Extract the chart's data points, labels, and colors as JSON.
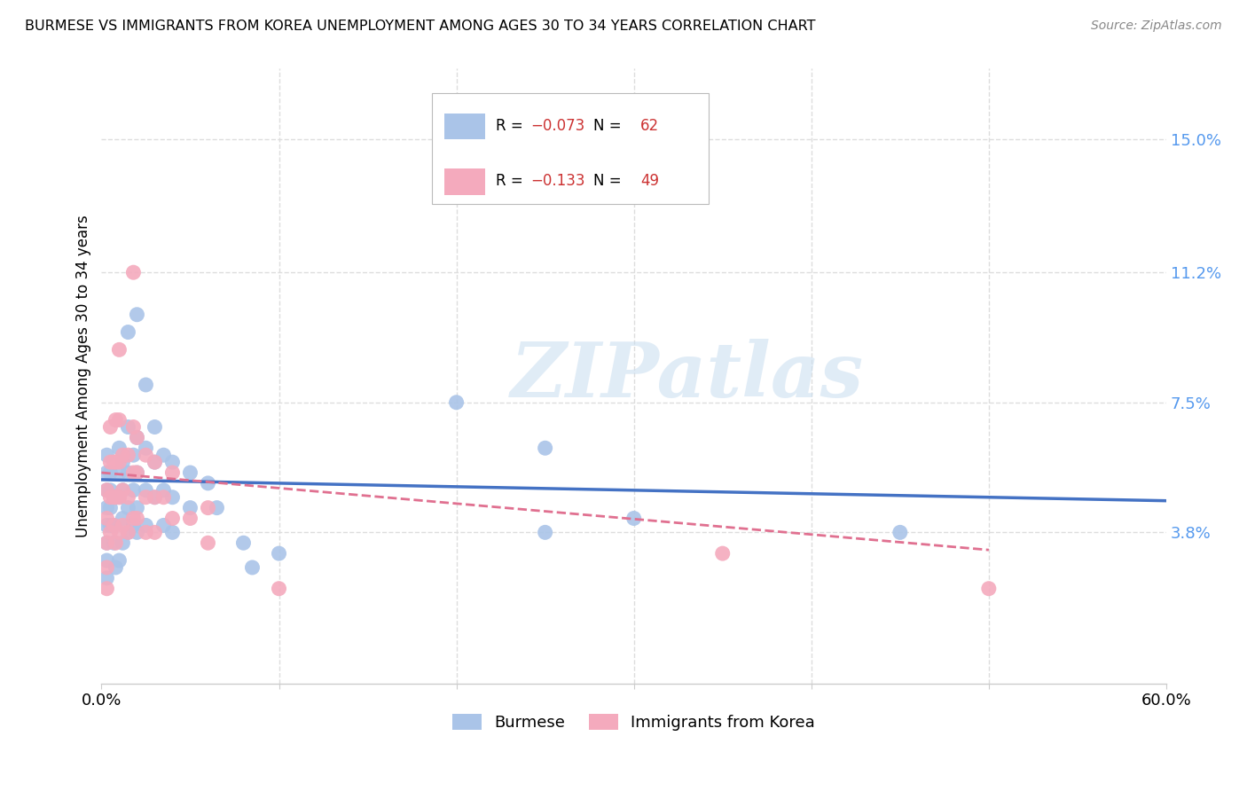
{
  "title": "BURMESE VS IMMIGRANTS FROM KOREA UNEMPLOYMENT AMONG AGES 30 TO 34 YEARS CORRELATION CHART",
  "source": "Source: ZipAtlas.com",
  "ylabel": "Unemployment Among Ages 30 to 34 years",
  "xlim": [
    0.0,
    0.6
  ],
  "ylim": [
    -0.005,
    0.17
  ],
  "yticks": [
    0.038,
    0.075,
    0.112,
    0.15
  ],
  "ytick_labels": [
    "3.8%",
    "7.5%",
    "11.2%",
    "15.0%"
  ],
  "background_color": "#ffffff",
  "grid_color": "#dddddd",
  "burmese_color": "#aac4e8",
  "korea_color": "#f4aabd",
  "burmese_line_color": "#4472c4",
  "korea_line_color": "#e07090",
  "watermark_text": "ZIPatlas",
  "burmese_scatter": [
    [
      0.003,
      0.06
    ],
    [
      0.003,
      0.055
    ],
    [
      0.003,
      0.05
    ],
    [
      0.003,
      0.045
    ],
    [
      0.003,
      0.04
    ],
    [
      0.003,
      0.035
    ],
    [
      0.003,
      0.03
    ],
    [
      0.003,
      0.025
    ],
    [
      0.005,
      0.055
    ],
    [
      0.005,
      0.05
    ],
    [
      0.005,
      0.045
    ],
    [
      0.005,
      0.04
    ],
    [
      0.007,
      0.048
    ],
    [
      0.007,
      0.04
    ],
    [
      0.007,
      0.035
    ],
    [
      0.008,
      0.028
    ],
    [
      0.01,
      0.062
    ],
    [
      0.01,
      0.055
    ],
    [
      0.01,
      0.048
    ],
    [
      0.01,
      0.03
    ],
    [
      0.012,
      0.058
    ],
    [
      0.012,
      0.05
    ],
    [
      0.012,
      0.042
    ],
    [
      0.012,
      0.035
    ],
    [
      0.015,
      0.095
    ],
    [
      0.015,
      0.068
    ],
    [
      0.015,
      0.055
    ],
    [
      0.015,
      0.045
    ],
    [
      0.015,
      0.038
    ],
    [
      0.018,
      0.06
    ],
    [
      0.018,
      0.05
    ],
    [
      0.018,
      0.04
    ],
    [
      0.02,
      0.1
    ],
    [
      0.02,
      0.065
    ],
    [
      0.02,
      0.055
    ],
    [
      0.02,
      0.045
    ],
    [
      0.02,
      0.038
    ],
    [
      0.025,
      0.08
    ],
    [
      0.025,
      0.062
    ],
    [
      0.025,
      0.05
    ],
    [
      0.025,
      0.04
    ],
    [
      0.03,
      0.068
    ],
    [
      0.03,
      0.058
    ],
    [
      0.03,
      0.048
    ],
    [
      0.035,
      0.06
    ],
    [
      0.035,
      0.05
    ],
    [
      0.035,
      0.04
    ],
    [
      0.04,
      0.058
    ],
    [
      0.04,
      0.048
    ],
    [
      0.04,
      0.038
    ],
    [
      0.05,
      0.055
    ],
    [
      0.05,
      0.045
    ],
    [
      0.06,
      0.052
    ],
    [
      0.065,
      0.045
    ],
    [
      0.08,
      0.035
    ],
    [
      0.085,
      0.028
    ],
    [
      0.1,
      0.032
    ],
    [
      0.2,
      0.075
    ],
    [
      0.25,
      0.062
    ],
    [
      0.25,
      0.038
    ],
    [
      0.3,
      0.042
    ],
    [
      0.45,
      0.038
    ]
  ],
  "korea_scatter": [
    [
      0.003,
      0.05
    ],
    [
      0.003,
      0.042
    ],
    [
      0.003,
      0.035
    ],
    [
      0.003,
      0.028
    ],
    [
      0.003,
      0.022
    ],
    [
      0.005,
      0.068
    ],
    [
      0.005,
      0.058
    ],
    [
      0.005,
      0.048
    ],
    [
      0.005,
      0.038
    ],
    [
      0.007,
      0.058
    ],
    [
      0.007,
      0.048
    ],
    [
      0.007,
      0.04
    ],
    [
      0.008,
      0.07
    ],
    [
      0.008,
      0.058
    ],
    [
      0.008,
      0.048
    ],
    [
      0.008,
      0.035
    ],
    [
      0.01,
      0.09
    ],
    [
      0.01,
      0.07
    ],
    [
      0.01,
      0.058
    ],
    [
      0.01,
      0.048
    ],
    [
      0.01,
      0.038
    ],
    [
      0.012,
      0.06
    ],
    [
      0.012,
      0.05
    ],
    [
      0.012,
      0.04
    ],
    [
      0.015,
      0.06
    ],
    [
      0.015,
      0.048
    ],
    [
      0.015,
      0.038
    ],
    [
      0.018,
      0.112
    ],
    [
      0.018,
      0.068
    ],
    [
      0.018,
      0.055
    ],
    [
      0.018,
      0.042
    ],
    [
      0.02,
      0.065
    ],
    [
      0.02,
      0.055
    ],
    [
      0.02,
      0.042
    ],
    [
      0.025,
      0.06
    ],
    [
      0.025,
      0.048
    ],
    [
      0.025,
      0.038
    ],
    [
      0.03,
      0.058
    ],
    [
      0.03,
      0.048
    ],
    [
      0.03,
      0.038
    ],
    [
      0.035,
      0.048
    ],
    [
      0.04,
      0.055
    ],
    [
      0.04,
      0.042
    ],
    [
      0.05,
      0.042
    ],
    [
      0.06,
      0.045
    ],
    [
      0.06,
      0.035
    ],
    [
      0.1,
      0.022
    ],
    [
      0.35,
      0.032
    ],
    [
      0.5,
      0.022
    ]
  ],
  "burmese_trend": [
    0.0,
    0.053,
    0.6,
    0.047
  ],
  "korea_trend": [
    0.0,
    0.055,
    0.5,
    0.033
  ]
}
